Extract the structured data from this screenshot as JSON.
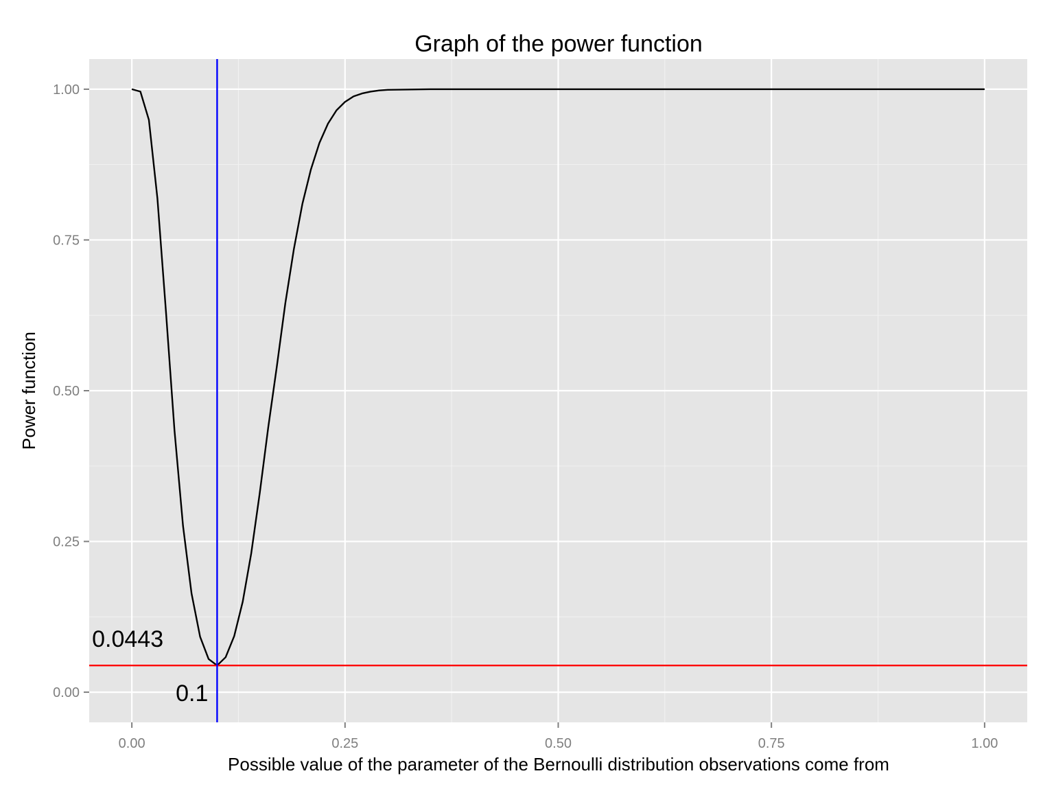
{
  "chart_data": {
    "type": "line",
    "title": "Graph of the power function",
    "xlabel": "Possible value of the parameter of the Bernoulli distribution observations come from",
    "ylabel": "Power function",
    "xlim": [
      -0.05,
      1.05
    ],
    "ylim": [
      -0.05,
      1.05
    ],
    "x_ticks": [
      0,
      0.25,
      0.5,
      0.75,
      1
    ],
    "x_tick_labels": [
      "0.00",
      "0.25",
      "0.50",
      "0.75",
      "1.00"
    ],
    "y_ticks": [
      0,
      0.25,
      0.5,
      0.75,
      1
    ],
    "y_tick_labels": [
      "0.00",
      "0.25",
      "0.50",
      "0.75",
      "1.00"
    ],
    "grid": true,
    "legend": "none",
    "series": [
      {
        "color": "#000000",
        "x": [
          0,
          0.01,
          0.02,
          0.03,
          0.04,
          0.05,
          0.06,
          0.07,
          0.08,
          0.09,
          0.1,
          0.11,
          0.12,
          0.13,
          0.14,
          0.15,
          0.16,
          0.17,
          0.18,
          0.19,
          0.2,
          0.21,
          0.22,
          0.23,
          0.24,
          0.25,
          0.26,
          0.27,
          0.28,
          0.29,
          0.3,
          0.35,
          0.4,
          0.5,
          0.6,
          0.7,
          0.8,
          0.9,
          1.0
        ],
        "y": [
          1.0,
          0.996,
          0.949,
          0.819,
          0.632,
          0.434,
          0.276,
          0.164,
          0.092,
          0.055,
          0.0443,
          0.058,
          0.093,
          0.15,
          0.23,
          0.33,
          0.44,
          0.54,
          0.645,
          0.735,
          0.81,
          0.867,
          0.911,
          0.943,
          0.965,
          0.979,
          0.988,
          0.993,
          0.996,
          0.998,
          0.999,
          1.0,
          1.0,
          1.0,
          1.0,
          1.0,
          1.0,
          1.0,
          1.0
        ]
      }
    ],
    "vline": {
      "x": 0.1,
      "color": "#0000ff"
    },
    "hline": {
      "y": 0.0443,
      "color": "#ff0000"
    },
    "annotations": [
      {
        "text": "0.0443",
        "x": 0.0,
        "y": 0.0443
      },
      {
        "text": "0.1",
        "x": 0.1,
        "y": 0.0
      }
    ],
    "colors": {
      "panel": "#e5e5e5",
      "grid": "#ffffff"
    }
  }
}
